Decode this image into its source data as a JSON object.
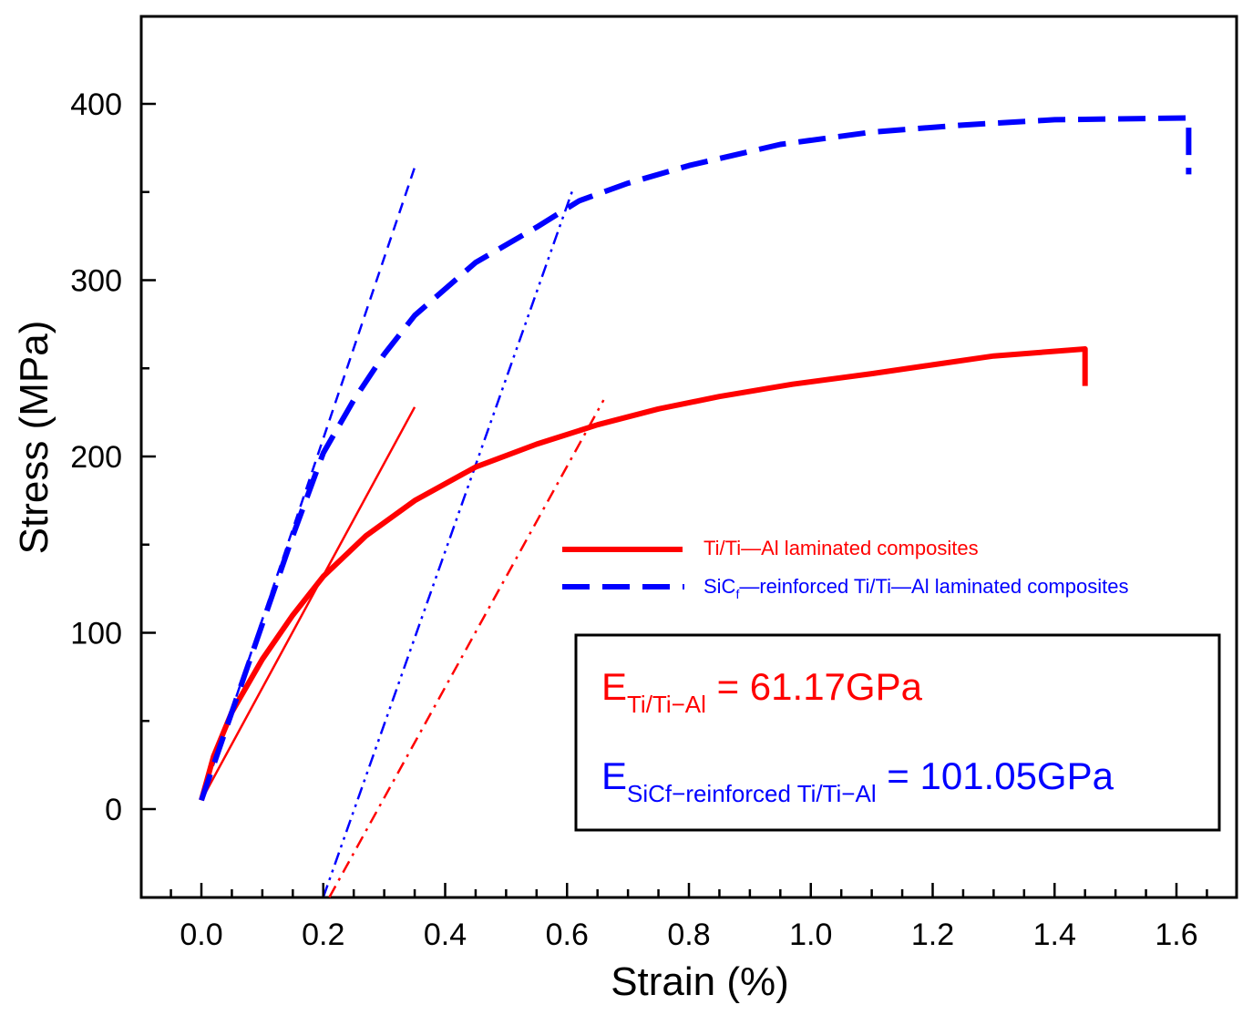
{
  "chart_data": {
    "type": "line",
    "title": "",
    "xlabel": "Strain (%)",
    "ylabel": "Stress (MPa)",
    "xlim": [
      -0.1,
      1.7
    ],
    "ylim": [
      -50,
      450
    ],
    "xticks": [
      0.0,
      0.2,
      0.4,
      0.6,
      0.8,
      1.0,
      1.2,
      1.4,
      1.6
    ],
    "xtick_labels": [
      "0.0",
      "0.2",
      "0.4",
      "0.6",
      "0.8",
      "1.0",
      "1.2",
      "1.4",
      "1.6"
    ],
    "yticks": [
      0,
      100,
      200,
      300,
      400
    ],
    "ytick_labels": [
      "0",
      "100",
      "200",
      "300",
      "400"
    ],
    "grid": false,
    "legend_position": "center-right",
    "series": [
      {
        "name": "Ti/Ti—Al laminated composites",
        "color": "#ff0000",
        "style": "solid",
        "x": [
          0.0,
          0.02,
          0.05,
          0.1,
          0.15,
          0.2,
          0.27,
          0.35,
          0.45,
          0.55,
          0.65,
          0.75,
          0.85,
          0.97,
          1.1,
          1.2,
          1.3,
          1.45,
          1.45
        ],
        "y": [
          5,
          30,
          55,
          85,
          110,
          132,
          155,
          175,
          194,
          207,
          218,
          227,
          234,
          241,
          247,
          252,
          257,
          261,
          240
        ]
      },
      {
        "name": "SiCf—reinforced Ti/Ti—Al laminated composites",
        "color": "#0000ff",
        "style": "dashed",
        "x": [
          0.0,
          0.05,
          0.1,
          0.15,
          0.2,
          0.25,
          0.3,
          0.35,
          0.45,
          0.55,
          0.62,
          0.7,
          0.8,
          0.95,
          1.1,
          1.25,
          1.4,
          1.62,
          1.62
        ],
        "y": [
          5,
          55,
          105,
          155,
          202,
          232,
          258,
          280,
          310,
          330,
          345,
          355,
          365,
          377,
          384,
          388,
          391,
          392,
          360
        ]
      }
    ],
    "fit_lines": [
      {
        "name": "red-elastic-fit",
        "color": "#ff0000",
        "style": "solid-thin",
        "x": [
          0.0,
          0.35
        ],
        "y": [
          5,
          228
        ]
      },
      {
        "name": "red-offset-line",
        "color": "#ff0000",
        "style": "dashdot",
        "x": [
          0.21,
          0.66
        ],
        "y": [
          -50,
          232
        ]
      },
      {
        "name": "blue-elastic-fit",
        "color": "#0000ff",
        "style": "dashed-thin",
        "x": [
          0.0,
          0.35
        ],
        "y": [
          5,
          364
        ]
      },
      {
        "name": "blue-offset-line",
        "color": "#0000ff",
        "style": "dashdotdot",
        "x": [
          0.2,
          0.61
        ],
        "y": [
          -50,
          352
        ]
      }
    ]
  },
  "legend": {
    "ti_label": "Ti/Ti—Al laminated composites",
    "sic_label_main": "SiC",
    "sic_label_sub": "f",
    "sic_label_rest": "—reinforced Ti/Ti—Al laminated composites"
  },
  "annotation": {
    "e1_symbol": "E",
    "e1_sub": "Ti/Ti−Al",
    "e1_value": " = 61.17GPa",
    "e1_color": "#ff0000",
    "e2_symbol": "E",
    "e2_sub": "SiCf−reinforced Ti/Ti−Al",
    "e2_value": " = 101.05GPa",
    "e2_color": "#0000ff"
  }
}
